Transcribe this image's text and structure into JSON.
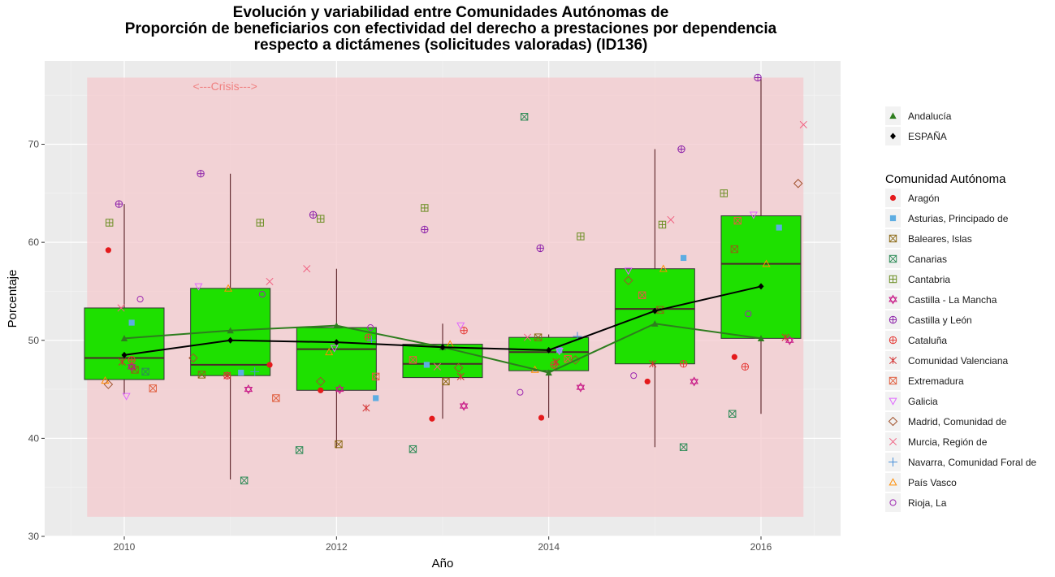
{
  "chart_data": {
    "type": "box",
    "title": [
      "Evolución y variabilidad entre Comunidades Autónomas de",
      "Proporción de beneficiarios con efectividad del derecho a prestaciones por dependencia",
      "respecto a dictámenes (solicitudes valoradas) (ID136)"
    ],
    "xlabel": "Año",
    "ylabel": "Porcentaje",
    "xlim": [
      2009.25,
      2016.75
    ],
    "ylim": [
      30,
      78.5
    ],
    "x_ticks": [
      2010,
      2012,
      2014,
      2016
    ],
    "y_ticks": [
      30,
      40,
      50,
      60,
      70
    ],
    "grid": true,
    "crisis_band": {
      "label": "<---Crisis--->",
      "x": [
        2009.65,
        2016.4
      ],
      "y": [
        32,
        76.8
      ],
      "color": "#f4c9cd"
    },
    "boxes": [
      {
        "x": 2010,
        "whisker_low": 44.5,
        "q1": 46.0,
        "median": 48.2,
        "q3": 53.3,
        "whisker_high": 63.9
      },
      {
        "x": 2011,
        "whisker_low": 35.8,
        "q1": 46.4,
        "median": 47.5,
        "q3": 55.3,
        "whisker_high": 67.0
      },
      {
        "x": 2012,
        "whisker_low": 39.0,
        "q1": 44.9,
        "median": 49.1,
        "q3": 51.3,
        "whisker_high": 57.3
      },
      {
        "x": 2013,
        "whisker_low": 42.0,
        "q1": 46.2,
        "median": 47.6,
        "q3": 49.6,
        "whisker_high": 51.7
      },
      {
        "x": 2014,
        "whisker_low": 42.1,
        "q1": 46.9,
        "median": 48.8,
        "q3": 50.3,
        "whisker_high": 50.6
      },
      {
        "x": 2015,
        "whisker_low": 39.1,
        "q1": 47.6,
        "median": 53.2,
        "q3": 57.3,
        "whisker_high": 69.5
      },
      {
        "x": 2016,
        "whisker_low": 42.5,
        "q1": 50.2,
        "median": 57.8,
        "q3": 62.7,
        "whisker_high": 76.8
      }
    ],
    "box_color": "#1ee000",
    "lines": [
      {
        "name": "Andalucía",
        "color": "#2e7d1e",
        "marker": "triangle",
        "x": [
          2010,
          2011,
          2012,
          2013,
          2014,
          2015,
          2016
        ],
        "y": [
          50.2,
          51.0,
          51.5,
          49.3,
          46.7,
          51.7,
          50.2
        ]
      },
      {
        "name": "ESPAÑA",
        "color": "#000000",
        "marker": "diamond",
        "x": [
          2010,
          2011,
          2012,
          2013,
          2014,
          2015,
          2016
        ],
        "y": [
          48.5,
          50.0,
          49.8,
          49.3,
          49.0,
          53.0,
          55.5
        ]
      }
    ],
    "trend_line_color": "#4a0f14",
    "communities": [
      {
        "name": "Aragón",
        "shape": "circle-filled",
        "color": "#e41a1c",
        "points": [
          [
            2009.85,
            59.2
          ],
          [
            2011.37,
            47.5
          ],
          [
            2011.85,
            44.9
          ],
          [
            2012.9,
            42.0
          ],
          [
            2013.93,
            42.1
          ],
          [
            2014.93,
            45.8
          ],
          [
            2015.75,
            48.3
          ]
        ]
      },
      {
        "name": "Asturias, Principado de",
        "shape": "square-filled",
        "color": "#5dade2",
        "points": [
          [
            2010.07,
            51.8
          ],
          [
            2011.1,
            46.7
          ],
          [
            2012.37,
            44.1
          ],
          [
            2012.85,
            47.5
          ],
          [
            2014.1,
            49.0
          ],
          [
            2015.27,
            58.4
          ],
          [
            2016.17,
            61.5
          ]
        ]
      },
      {
        "name": "Baleares, Islas",
        "shape": "square-x",
        "color": "#8b6914",
        "points": [
          [
            2010.1,
            47.0
          ],
          [
            2010.73,
            46.5
          ],
          [
            2012.02,
            39.4
          ],
          [
            2013.03,
            45.8
          ],
          [
            2013.9,
            50.3
          ],
          [
            2015.05,
            53.1
          ],
          [
            2015.75,
            59.3
          ]
        ]
      },
      {
        "name": "Canarias",
        "shape": "square-cross",
        "color": "#2e8b57",
        "points": [
          [
            2010.2,
            46.8
          ],
          [
            2011.13,
            35.7
          ],
          [
            2011.65,
            38.8
          ],
          [
            2012.72,
            38.9
          ],
          [
            2013.77,
            72.8
          ],
          [
            2015.27,
            39.1
          ],
          [
            2015.73,
            42.5
          ]
        ]
      },
      {
        "name": "Cantabria",
        "shape": "square-plus",
        "color": "#6b8e23",
        "points": [
          [
            2009.86,
            62.0
          ],
          [
            2011.28,
            62.0
          ],
          [
            2011.85,
            62.4
          ],
          [
            2012.83,
            63.5
          ],
          [
            2014.3,
            60.6
          ],
          [
            2015.07,
            61.8
          ],
          [
            2015.65,
            65.0
          ]
        ]
      },
      {
        "name": "Castilla - La Mancha",
        "shape": "star6",
        "color": "#c71585",
        "points": [
          [
            2010.07,
            47.3
          ],
          [
            2011.17,
            45.0
          ],
          [
            2012.03,
            45.0
          ],
          [
            2013.2,
            43.3
          ],
          [
            2014.3,
            45.2
          ],
          [
            2015.37,
            45.8
          ],
          [
            2016.27,
            50.0
          ]
        ]
      },
      {
        "name": "Castilla y León",
        "shape": "circle-plus",
        "color": "#8e24aa",
        "points": [
          [
            2009.95,
            63.9
          ],
          [
            2010.72,
            67.0
          ],
          [
            2011.78,
            62.8
          ],
          [
            2012.83,
            61.3
          ],
          [
            2013.92,
            59.4
          ],
          [
            2015.25,
            69.5
          ],
          [
            2015.97,
            76.8
          ]
        ]
      },
      {
        "name": "Cataluña",
        "shape": "circle-plus-red",
        "color": "#e53935",
        "points": [
          [
            2010.07,
            48.0
          ],
          [
            2010.97,
            46.4
          ],
          [
            2012.3,
            50.3
          ],
          [
            2013.2,
            51.0
          ],
          [
            2014.05,
            47.5
          ],
          [
            2015.27,
            47.6
          ],
          [
            2015.85,
            47.3
          ]
        ]
      },
      {
        "name": "Comunidad Valenciana",
        "shape": "asterisk",
        "color": "#d32f2f",
        "points": [
          [
            2009.98,
            47.8
          ],
          [
            2010.97,
            46.4
          ],
          [
            2012.28,
            43.1
          ],
          [
            2013.17,
            46.3
          ],
          [
            2014.07,
            47.8
          ],
          [
            2014.98,
            47.6
          ],
          [
            2016.23,
            50.3
          ]
        ]
      },
      {
        "name": "Extremadura",
        "shape": "square-x",
        "color": "#e06040",
        "points": [
          [
            2010.27,
            45.1
          ],
          [
            2011.43,
            44.1
          ],
          [
            2012.37,
            46.3
          ],
          [
            2012.72,
            48.0
          ],
          [
            2014.18,
            48.1
          ],
          [
            2014.88,
            54.6
          ],
          [
            2015.78,
            62.2
          ]
        ]
      },
      {
        "name": "Galicia",
        "shape": "triangle-down",
        "color": "#e066ff",
        "points": [
          [
            2010.02,
            44.3
          ],
          [
            2010.7,
            55.5
          ],
          [
            2011.98,
            49.2
          ],
          [
            2013.17,
            51.5
          ],
          [
            2014.1,
            48.9
          ],
          [
            2014.75,
            57.1
          ],
          [
            2015.93,
            62.8
          ]
        ]
      },
      {
        "name": "Madrid, Comunidad de",
        "shape": "diamond-open",
        "color": "#a0522d",
        "points": [
          [
            2009.85,
            45.5
          ],
          [
            2010.65,
            48.2
          ],
          [
            2011.85,
            45.8
          ],
          [
            2013.15,
            47.2
          ],
          [
            2014.25,
            48.0
          ],
          [
            2014.75,
            56.1
          ],
          [
            2016.35,
            66.0
          ]
        ]
      },
      {
        "name": "Murcia, Región de",
        "shape": "x",
        "color": "#f06080",
        "points": [
          [
            2009.97,
            53.3
          ],
          [
            2011.37,
            56.0
          ],
          [
            2011.72,
            57.3
          ],
          [
            2012.95,
            47.3
          ],
          [
            2013.8,
            50.3
          ],
          [
            2015.15,
            62.3
          ],
          [
            2016.4,
            72.0
          ]
        ]
      },
      {
        "name": "Navarra, Comunidad Foral de",
        "shape": "plus",
        "color": "#4a90d9",
        "points": [
          [
            2011.23,
            46.8
          ],
          [
            2012.33,
            50.0
          ],
          [
            2014.27,
            50.4
          ]
        ]
      },
      {
        "name": "País Vasco",
        "shape": "triangle-open",
        "color": "#ff8c00",
        "points": [
          [
            2009.82,
            45.9
          ],
          [
            2010.98,
            55.3
          ],
          [
            2011.93,
            48.8
          ],
          [
            2013.07,
            49.6
          ],
          [
            2013.87,
            47.0
          ],
          [
            2015.08,
            57.3
          ],
          [
            2016.05,
            57.8
          ]
        ]
      },
      {
        "name": "Rioja, La",
        "shape": "circle-open",
        "color": "#9c27b0",
        "points": [
          [
            2010.15,
            54.2
          ],
          [
            2011.3,
            54.7
          ],
          [
            2012.32,
            51.3
          ],
          [
            2013.73,
            44.7
          ],
          [
            2014.8,
            46.4
          ],
          [
            2015.88,
            52.7
          ]
        ]
      }
    ],
    "legend_top": [
      "Andalucía",
      "ESPAÑA"
    ],
    "legend_title": "Comunidad Autónoma"
  }
}
